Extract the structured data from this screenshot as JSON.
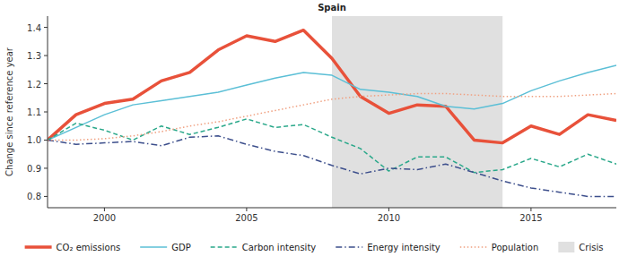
{
  "chart_data": {
    "type": "line",
    "title": "Spain",
    "y_label": "Change since reference year",
    "x": [
      1998,
      1999,
      2000,
      2001,
      2002,
      2003,
      2004,
      2005,
      2006,
      2007,
      2008,
      2009,
      2010,
      2011,
      2012,
      2013,
      2014,
      2015,
      2016,
      2017,
      2018
    ],
    "xlim": [
      1998,
      2018
    ],
    "xticks": [
      2000,
      2005,
      2010,
      2015
    ],
    "ylim": [
      0.76,
      1.44
    ],
    "yticks": [
      0.8,
      0.9,
      {
        "value": 1,
        "label": "1.0"
      },
      1.1,
      1.2,
      1.3,
      1.4
    ],
    "grid": false,
    "legend": "bottom",
    "series": [
      {
        "name": "CO₂ emissions",
        "color": "#e8513a",
        "line_style": "solid",
        "values": [
          1.0,
          1.09,
          1.13,
          1.145,
          1.21,
          1.24,
          1.32,
          1.37,
          1.35,
          1.39,
          1.29,
          1.155,
          1.095,
          1.125,
          1.12,
          1.0,
          0.99,
          1.05,
          1.02,
          1.09,
          1.07
        ]
      },
      {
        "name": "GDP",
        "color": "#5bbfd6",
        "line_style": "solid",
        "values": [
          1.0,
          1.045,
          1.09,
          1.125,
          1.14,
          1.155,
          1.17,
          1.195,
          1.22,
          1.24,
          1.23,
          1.18,
          1.17,
          1.155,
          1.12,
          1.11,
          1.13,
          1.175,
          1.21,
          1.24,
          1.265
        ]
      },
      {
        "name": "Carbon intensity",
        "color": "#2aa88a",
        "line_style": "dashed",
        "values": [
          1.0,
          1.06,
          1.035,
          1.0,
          1.05,
          1.02,
          1.045,
          1.075,
          1.045,
          1.055,
          1.01,
          0.97,
          0.89,
          0.94,
          0.94,
          0.885,
          0.895,
          0.935,
          0.905,
          0.95,
          0.915
        ]
      },
      {
        "name": "Energy intensity",
        "color": "#3d4f8c",
        "line_style": "dashdot",
        "values": [
          1.0,
          0.985,
          0.99,
          0.995,
          0.98,
          1.01,
          1.015,
          0.985,
          0.96,
          0.945,
          0.91,
          0.88,
          0.9,
          0.895,
          0.915,
          0.885,
          0.855,
          0.83,
          0.815,
          0.8,
          0.8
        ]
      },
      {
        "name": "Population",
        "color": "#f0a080",
        "line_style": "dotted",
        "values": [
          1.0,
          1.0,
          1.005,
          1.015,
          1.03,
          1.05,
          1.065,
          1.085,
          1.105,
          1.125,
          1.145,
          1.155,
          1.16,
          1.165,
          1.165,
          1.16,
          1.155,
          1.155,
          1.155,
          1.16,
          1.165
        ]
      }
    ],
    "bands": [
      {
        "name": "Crisis",
        "start": 2008,
        "end": 2014,
        "color": "#e0e0e0"
      }
    ]
  }
}
